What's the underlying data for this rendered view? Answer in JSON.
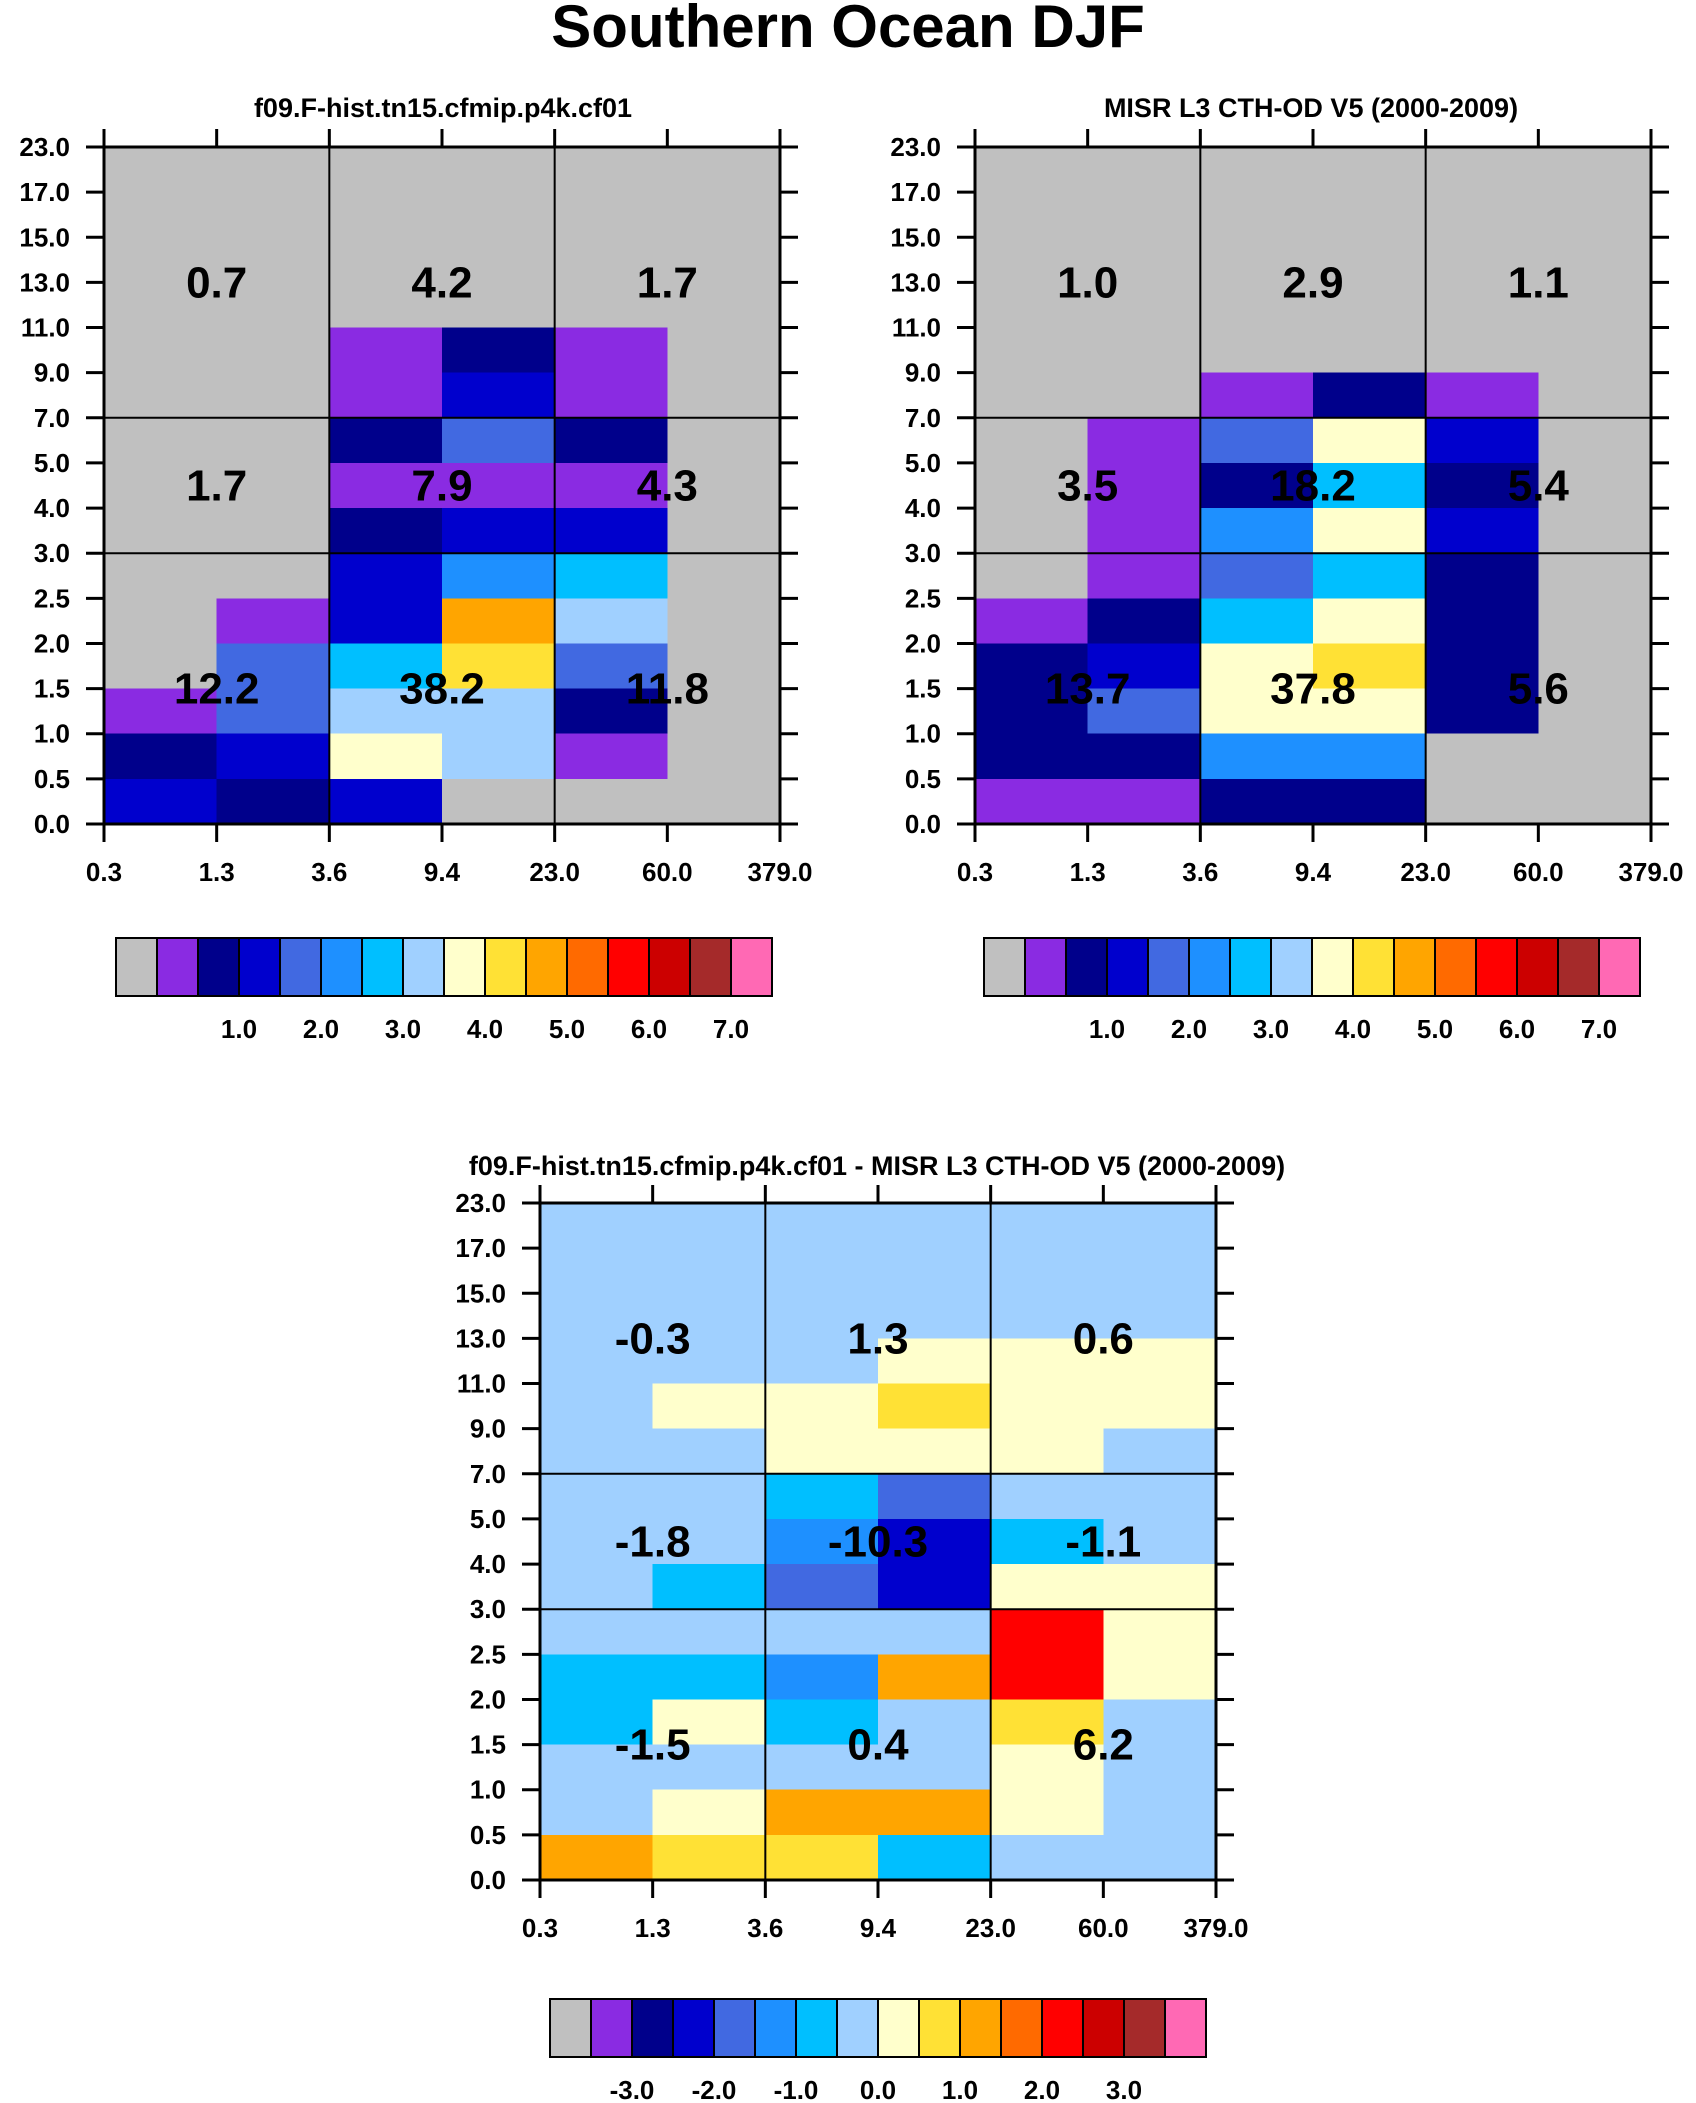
{
  "title": "Southern Ocean DJF",
  "axes": {
    "x_ticks": [
      "0.3",
      "1.3",
      "3.6",
      "9.4",
      "23.0",
      "60.0",
      "379.0"
    ],
    "y_ticks": [
      "0.0",
      "0.5",
      "1.0",
      "1.5",
      "2.0",
      "2.5",
      "3.0",
      "4.0",
      "5.0",
      "7.0",
      "9.0",
      "11.0",
      "13.0",
      "15.0",
      "17.0",
      "23.0"
    ]
  },
  "colorbars": {
    "abs": {
      "colors": [
        "#c0c0c0",
        "#8a2be2",
        "#00008b",
        "#0000cd",
        "#4169e1",
        "#1e90ff",
        "#00bfff",
        "#a0d0ff",
        "#ffffcc",
        "#ffe135",
        "#ffa500",
        "#ff6a00",
        "#ff0000",
        "#cc0000",
        "#a52a2a",
        "#ff69b4"
      ],
      "labels": [
        "1.0",
        "2.0",
        "3.0",
        "4.0",
        "5.0",
        "6.0",
        "7.0"
      ],
      "label_boundaries": [
        3,
        5,
        7,
        9,
        11,
        13,
        15
      ]
    },
    "diff": {
      "colors": [
        "#c0c0c0",
        "#8a2be2",
        "#00008b",
        "#0000cd",
        "#4169e1",
        "#1e90ff",
        "#00bfff",
        "#a0d0ff",
        "#ffffcc",
        "#ffe135",
        "#ffa500",
        "#ff6a00",
        "#ff0000",
        "#cc0000",
        "#a52a2a",
        "#ff69b4"
      ],
      "labels": [
        "-3.0",
        "-2.0",
        "-1.0",
        "0.0",
        "1.0",
        "2.0",
        "3.0"
      ],
      "label_boundaries": [
        2,
        4,
        6,
        8,
        10,
        12,
        14
      ]
    }
  },
  "chart_data": [
    {
      "type": "heatmap",
      "title": "f09.F-hist.tn15.cfmip.p4k.cf01",
      "xlabel": "",
      "ylabel": "",
      "colorbar": "abs",
      "grid_note": "rows listed top (23.0-17.0) to bottom (0.5-0.0); columns 0.3-1.3 ... 60.0-379.0; values are color-bin indices",
      "cells": [
        [
          0,
          0,
          0,
          0,
          0,
          0
        ],
        [
          0,
          0,
          0,
          0,
          0,
          0
        ],
        [
          0,
          0,
          0,
          0,
          0,
          0
        ],
        [
          0,
          0,
          0,
          0,
          0,
          0
        ],
        [
          0,
          0,
          1,
          2,
          1,
          0
        ],
        [
          0,
          0,
          1,
          3,
          1,
          0
        ],
        [
          0,
          0,
          2,
          4,
          2,
          0
        ],
        [
          0,
          0,
          1,
          1,
          1,
          0
        ],
        [
          0,
          0,
          2,
          3,
          3,
          0
        ],
        [
          0,
          0,
          3,
          5,
          6,
          0
        ],
        [
          0,
          1,
          3,
          10,
          7,
          0
        ],
        [
          0,
          4,
          6,
          9,
          4,
          0
        ],
        [
          1,
          4,
          7,
          7,
          2,
          0
        ],
        [
          2,
          3,
          8,
          7,
          1,
          0
        ],
        [
          3,
          2,
          3,
          0,
          0,
          0
        ]
      ],
      "region_totals": [
        [
          "0.7",
          "4.2",
          "1.7"
        ],
        [
          "1.7",
          "7.9",
          "4.3"
        ],
        [
          "12.2",
          "38.2",
          "11.8"
        ]
      ]
    },
    {
      "type": "heatmap",
      "title": "MISR L3 CTH-OD V5 (2000-2009)",
      "xlabel": "",
      "ylabel": "",
      "colorbar": "abs",
      "cells": [
        [
          0,
          0,
          0,
          0,
          0,
          0
        ],
        [
          0,
          0,
          0,
          0,
          0,
          0
        ],
        [
          0,
          0,
          0,
          0,
          0,
          0
        ],
        [
          0,
          0,
          0,
          0,
          0,
          0
        ],
        [
          0,
          0,
          0,
          0,
          0,
          0
        ],
        [
          0,
          0,
          1,
          2,
          1,
          0
        ],
        [
          0,
          1,
          4,
          8,
          3,
          0
        ],
        [
          0,
          1,
          2,
          6,
          2,
          0
        ],
        [
          0,
          1,
          5,
          8,
          3,
          0
        ],
        [
          0,
          1,
          4,
          6,
          2,
          0
        ],
        [
          1,
          2,
          6,
          8,
          2,
          0
        ],
        [
          2,
          3,
          8,
          9,
          2,
          0
        ],
        [
          2,
          4,
          8,
          8,
          2,
          0
        ],
        [
          2,
          2,
          5,
          5,
          0,
          0
        ],
        [
          1,
          1,
          2,
          2,
          0,
          0
        ]
      ],
      "region_totals": [
        [
          "1.0",
          "2.9",
          "1.1"
        ],
        [
          "3.5",
          "18.2",
          "5.4"
        ],
        [
          "13.7",
          "37.8",
          "5.6"
        ]
      ]
    },
    {
      "type": "heatmap",
      "title": "f09.F-hist.tn15.cfmip.p4k.cf01 - MISR L3 CTH-OD V5 (2000-2009)",
      "xlabel": "",
      "ylabel": "",
      "colorbar": "diff",
      "cells": [
        [
          7,
          7,
          7,
          7,
          7,
          7
        ],
        [
          7,
          7,
          7,
          7,
          7,
          7
        ],
        [
          7,
          7,
          7,
          7,
          7,
          7
        ],
        [
          7,
          7,
          7,
          8,
          8,
          8
        ],
        [
          7,
          8,
          8,
          9,
          8,
          8
        ],
        [
          7,
          7,
          8,
          8,
          8,
          7
        ],
        [
          7,
          7,
          6,
          4,
          7,
          7
        ],
        [
          7,
          7,
          5,
          3,
          6,
          7
        ],
        [
          7,
          6,
          4,
          3,
          8,
          8
        ],
        [
          7,
          7,
          7,
          7,
          12,
          8
        ],
        [
          6,
          6,
          5,
          10,
          12,
          8
        ],
        [
          6,
          8,
          6,
          7,
          9,
          7
        ],
        [
          7,
          7,
          7,
          7,
          8,
          7
        ],
        [
          7,
          8,
          10,
          10,
          8,
          7
        ],
        [
          10,
          9,
          9,
          6,
          7,
          7
        ]
      ],
      "region_totals": [
        [
          "-0.3",
          "1.3",
          "0.6"
        ],
        [
          "-1.8",
          "-10.3",
          "-1.1"
        ],
        [
          "-1.5",
          "0.4",
          "6.2"
        ]
      ]
    }
  ]
}
